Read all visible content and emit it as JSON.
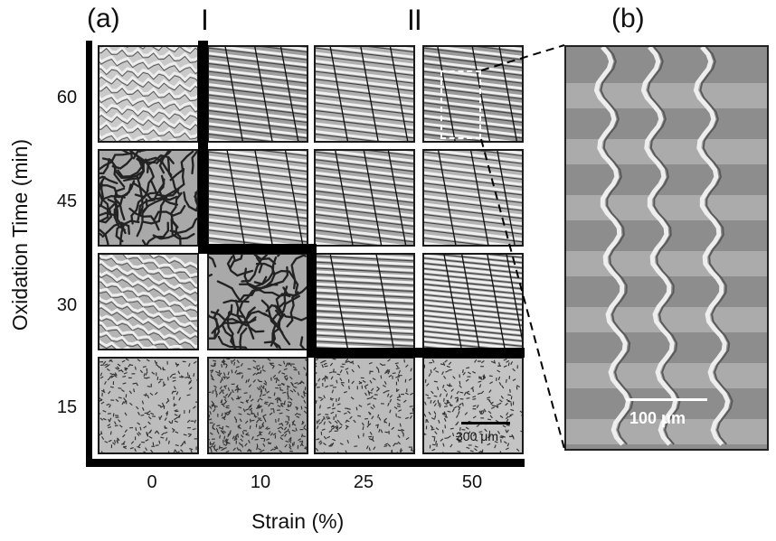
{
  "panel_a": {
    "label": "(a)",
    "regime_I": "I",
    "regime_II": "II",
    "y_axis_title": "Oxidation Time (min)",
    "x_axis_title": "Strain (%)",
    "y_ticks": [
      "60",
      "45",
      "30",
      "15"
    ],
    "x_ticks": [
      "0",
      "10",
      "25",
      "50"
    ],
    "scale_bar": "300 μm"
  },
  "panel_b": {
    "label": "(b)",
    "scale_bar": "100 μm"
  },
  "colors": {
    "ink": "#000000",
    "tile_background": "#b8b8b8",
    "zoom_background": "#8d8d8d"
  }
}
